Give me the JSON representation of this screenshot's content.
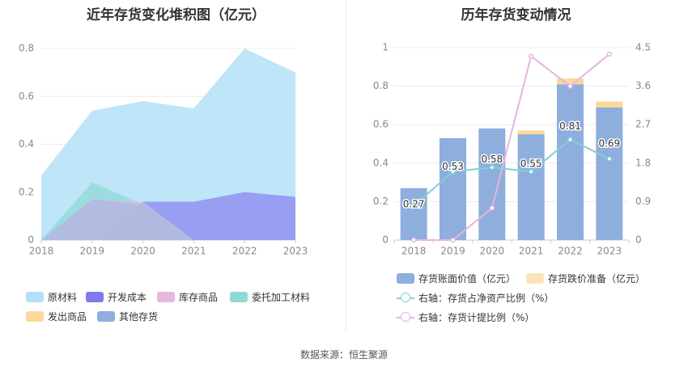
{
  "left_title": "近年存货变化堆积图（亿元）",
  "right_title": "历年存货变动情况",
  "source": "数据来源：恒生聚源",
  "chart_data": [
    {
      "type": "area",
      "stacked": true,
      "title": "近年存货变化堆积图（亿元）",
      "categories": [
        "2018",
        "2019",
        "2020",
        "2021",
        "2022",
        "2023"
      ],
      "ylim": [
        0,
        0.8
      ],
      "yticks": [
        "0",
        "0.2",
        "0.4",
        "0.6",
        "0.8"
      ],
      "grid": true,
      "legend_position": "bottom",
      "series": [
        {
          "name": "原材料",
          "color": "#b3e0f7",
          "totals": [
            0.27,
            0.54,
            0.58,
            0.55,
            0.8,
            0.7
          ]
        },
        {
          "name": "开发成本",
          "color": "#8b86f0",
          "totals": [
            0,
            0,
            0.16,
            0.16,
            0.2,
            0.18
          ]
        },
        {
          "name": "库存商品",
          "color": "#e8b8dc",
          "totals": [
            0,
            0.17,
            0.16,
            0,
            0,
            0
          ]
        },
        {
          "name": "委托加工材料",
          "color": "#8fd9d6",
          "totals": [
            0,
            0.24,
            0.15,
            0,
            0,
            0
          ]
        },
        {
          "name": "发出商品",
          "color": "#fdd89a",
          "totals": [
            0,
            0,
            0,
            0,
            0,
            0
          ]
        },
        {
          "name": "其他存货",
          "color": "#a8b8e0",
          "totals": [
            0,
            0.17,
            0.15,
            0,
            0,
            0
          ]
        }
      ]
    },
    {
      "type": "bar",
      "title": "历年存货变动情况",
      "categories": [
        "2018",
        "2019",
        "2020",
        "2021",
        "2022",
        "2023"
      ],
      "ylim": [
        0,
        1
      ],
      "yticks": [
        "0",
        "0.2",
        "0.4",
        "0.6",
        "0.8",
        "1"
      ],
      "y2lim": [
        0,
        4.5
      ],
      "y2ticks": [
        "0",
        "0.9",
        "1.8",
        "2.7",
        "3.6",
        "4.5"
      ],
      "grid": true,
      "legend_position": "bottom",
      "bar_series": [
        {
          "name": "存货账面价值（亿元）",
          "color": "#8eaedd",
          "values": [
            0.27,
            0.53,
            0.58,
            0.55,
            0.81,
            0.69
          ],
          "labels": [
            "0.27",
            "0.53",
            "0.58",
            "0.55",
            "0.81",
            "0.69"
          ]
        },
        {
          "name": "存货跌价准备（亿元）",
          "color": "#fdd89a",
          "values": [
            0,
            0,
            0,
            0.02,
            0.03,
            0.03
          ]
        }
      ],
      "line_series": [
        {
          "name": "右轴：存货占净资产比例（%）",
          "color": "#7fd1d6",
          "values": [
            0.8,
            1.6,
            1.7,
            1.6,
            2.35,
            1.9
          ]
        },
        {
          "name": "右轴：存货计提比例（%）",
          "color": "#e6b4df",
          "values": [
            0,
            0,
            0.75,
            4.3,
            3.6,
            4.35
          ]
        }
      ]
    }
  ]
}
